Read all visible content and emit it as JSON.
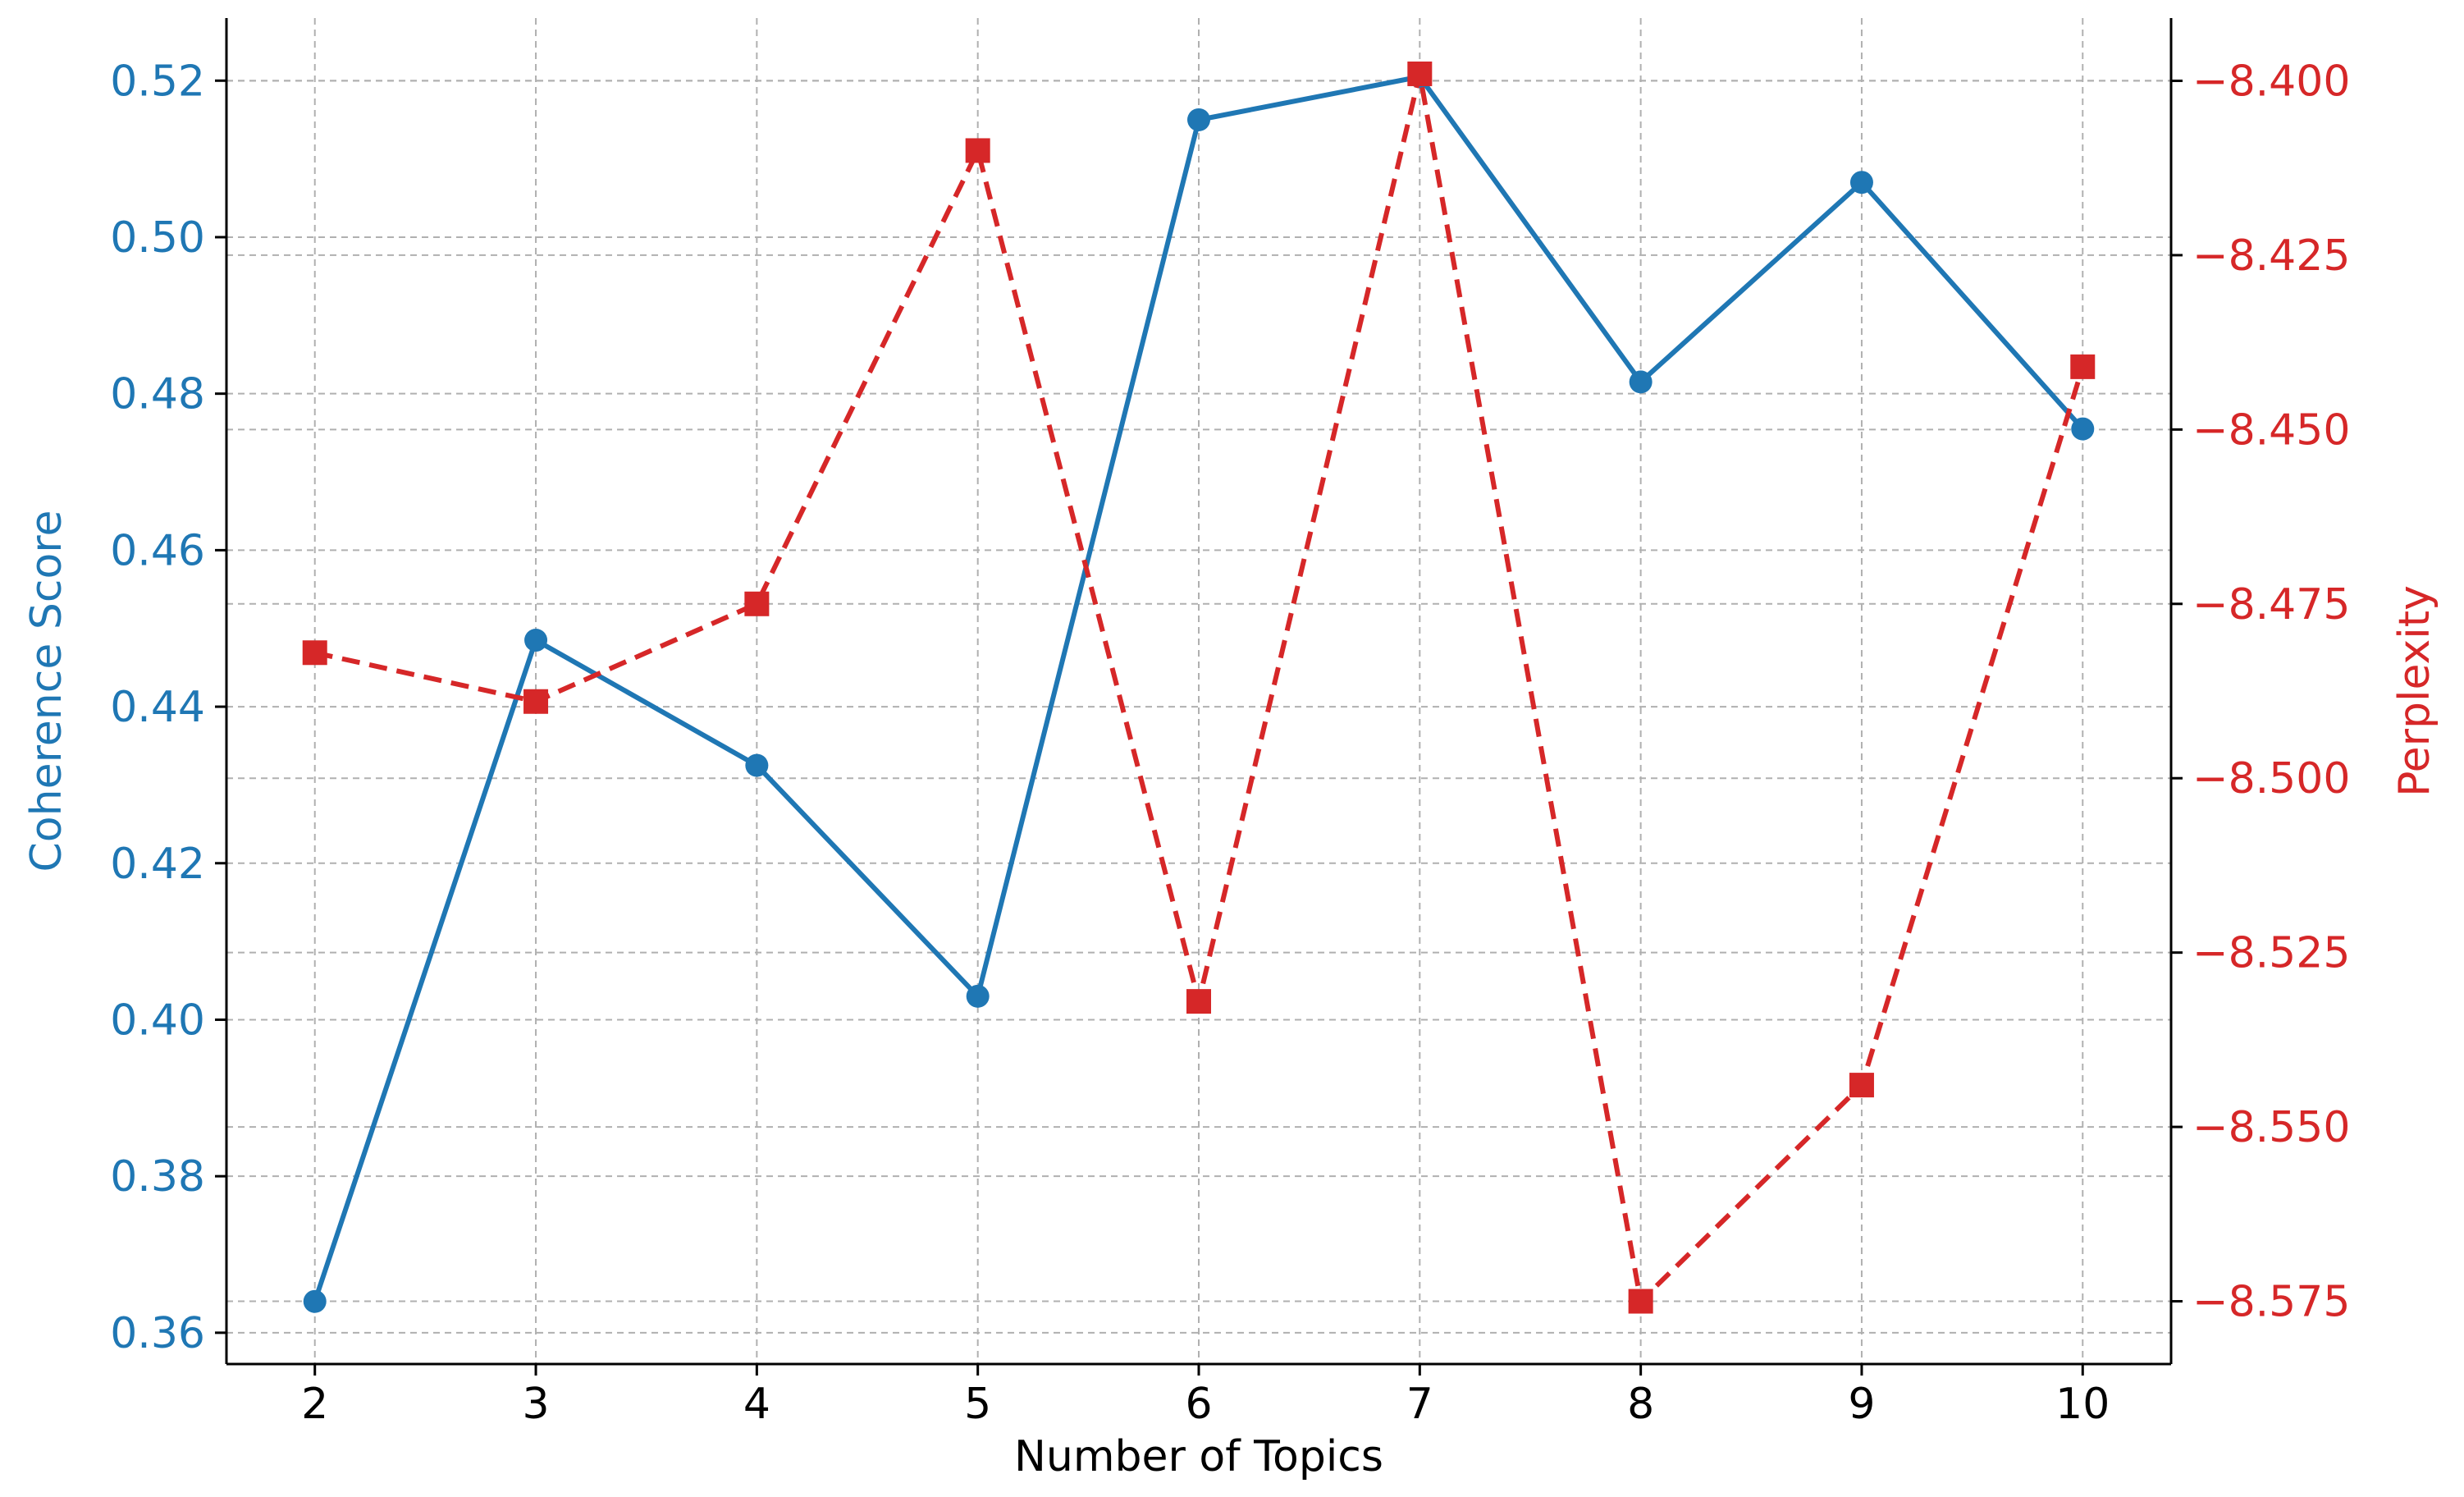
{
  "chart_data": {
    "type": "line",
    "x": [
      2,
      3,
      4,
      5,
      6,
      7,
      8,
      9,
      10
    ],
    "xlabel": "Number of Topics",
    "xticks": [
      "2",
      "3",
      "4",
      "5",
      "6",
      "7",
      "8",
      "9",
      "10"
    ],
    "xlim": [
      1.6,
      10.4
    ],
    "grid": true,
    "series": [
      {
        "name": "",
        "axis": "left",
        "color": "#1f77b4",
        "line_style": "solid",
        "marker": "circle",
        "values": [
          0.364,
          0.4485,
          0.4325,
          0.403,
          0.515,
          0.5205,
          0.4815,
          0.507,
          0.4755
        ]
      },
      {
        "name": "",
        "axis": "right",
        "color": "#d62728",
        "line_style": "dashed",
        "marker": "square",
        "values": [
          -8.482,
          -8.489,
          -8.475,
          -8.41,
          -8.532,
          -8.399,
          -8.575,
          -8.544,
          -8.441
        ]
      }
    ],
    "left_axis": {
      "label": "Coherence Score",
      "color": "#1f77b4",
      "ylim": [
        0.356,
        0.528
      ],
      "ticks": [
        0.36,
        0.38,
        0.4,
        0.42,
        0.44,
        0.46,
        0.48,
        0.5,
        0.52
      ],
      "tick_labels": [
        "0.36",
        "0.38",
        "0.40",
        "0.42",
        "0.44",
        "0.46",
        "0.48",
        "0.50",
        "0.52"
      ]
    },
    "right_axis": {
      "label": "Perplexity",
      "color": "#d62728",
      "ylim": [
        -8.584,
        -8.391
      ],
      "ticks": [
        -8.575,
        -8.55,
        -8.525,
        -8.5,
        -8.475,
        -8.45,
        -8.425,
        -8.4
      ],
      "tick_labels": [
        "−8.575",
        "−8.550",
        "−8.525",
        "−8.500",
        "−8.475",
        "−8.450",
        "−8.425",
        "−8.400"
      ]
    }
  }
}
